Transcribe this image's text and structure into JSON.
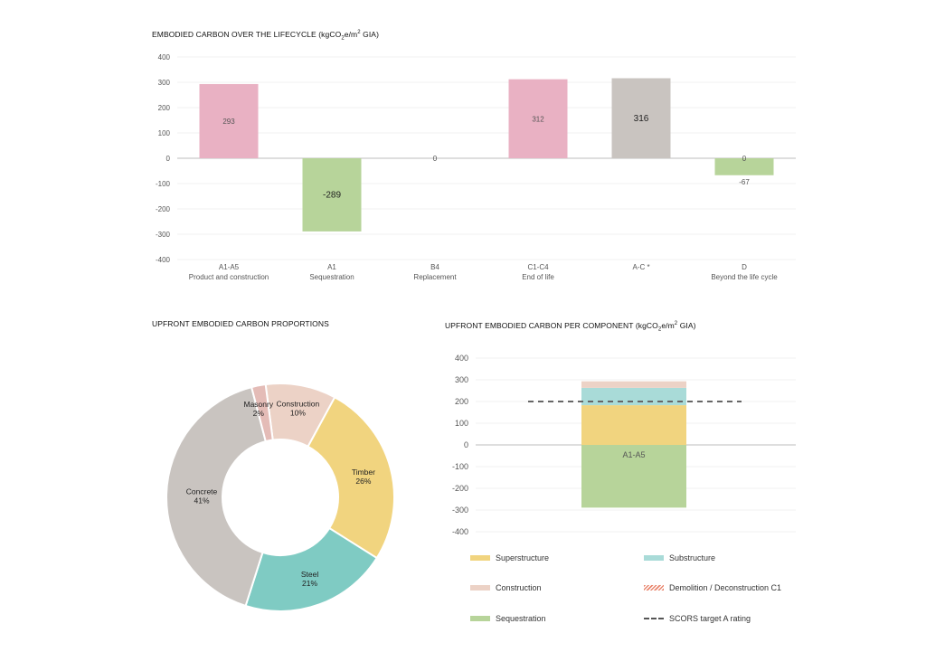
{
  "titles": {
    "chart1_main": "EMBODIED CARBON OVER THE LIFECYCLE (kgCO",
    "chart1_sub": "2",
    "chart1_mid": "e/m",
    "chart1_sup": "2",
    "chart1_tail": " GIA)",
    "chart2": "UPFRONT EMBODIED CARBON PROPORTIONS",
    "chart3_main": "UPFRONT EMBODIED CARBON PER COMPONENT (kgCO",
    "chart3_sub": "2",
    "chart3_mid": "e/m",
    "chart3_sup": "2",
    "chart3_tail": " GIA)"
  },
  "colors": {
    "pink": "#e9b1c3",
    "green": "#b7d49a",
    "grey": "#c9c4c0",
    "yellow": "#f1d47f",
    "teal": "#7fcbc3",
    "peach": "#ecd2c6",
    "masonry": "#e4bcb7",
    "substructure": "#a9dbd8",
    "axis": "#555555",
    "grid": "#e6e6e6"
  },
  "chart_data": [
    {
      "type": "bar",
      "title": "EMBODIED CARBON OVER THE LIFECYCLE (kgCO2e/m2 GIA)",
      "ylim": [
        -400,
        400
      ],
      "yticks": [
        "400",
        "300",
        "200",
        "100",
        "0",
        "-100",
        "-200",
        "-300",
        "-400"
      ],
      "ytick_values": [
        400,
        300,
        200,
        100,
        0,
        -100,
        -200,
        -300,
        -400
      ],
      "categories": [
        {
          "code": "A1-A5",
          "label": "Product and construction"
        },
        {
          "code": "A1",
          "label": "Sequestration"
        },
        {
          "code": "B4",
          "label": "Replacement"
        },
        {
          "code": "C1-C4",
          "label": "End of life"
        },
        {
          "code": "A-C *",
          "label": ""
        },
        {
          "code": "D",
          "label": "Beyond the life cycle"
        }
      ],
      "values": [
        293,
        -289,
        0,
        312,
        316,
        -67
      ],
      "data_labels": [
        "293",
        "-289",
        "0",
        "312",
        "316",
        "-67"
      ],
      "extra_label": {
        "category_index": 5,
        "text": "0"
      },
      "bar_colors": [
        "pink",
        "green",
        "pink",
        "pink",
        "grey",
        "green"
      ]
    },
    {
      "type": "pie",
      "title": "UPFRONT EMBODIED CARBON PROPORTIONS",
      "donut": true,
      "slices": [
        {
          "name": "Construction",
          "value": 10,
          "label": "10%",
          "color": "peach"
        },
        {
          "name": "Timber",
          "value": 26,
          "label": "26%",
          "color": "yellow"
        },
        {
          "name": "Steel",
          "value": 21,
          "label": "21%",
          "color": "teal"
        },
        {
          "name": "Concrete",
          "value": 41,
          "label": "41%",
          "color": "grey"
        },
        {
          "name": "Masonry",
          "value": 2,
          "label": "2%",
          "color": "masonry"
        }
      ]
    },
    {
      "type": "bar",
      "stacked": true,
      "title": "UPFRONT EMBODIED CARBON PER COMPONENT (kgCO2e/m2 GIA)",
      "ylim": [
        -400,
        400
      ],
      "yticks": [
        "400",
        "300",
        "200",
        "100",
        "0",
        "-100",
        "-200",
        "-300",
        "-400"
      ],
      "ytick_values": [
        400,
        300,
        200,
        100,
        0,
        -100,
        -200,
        -300,
        -400
      ],
      "categories": [
        "A1-A5"
      ],
      "series": [
        {
          "name": "Superstructure",
          "values": [
            183
          ],
          "color": "yellow"
        },
        {
          "name": "Substructure",
          "values": [
            80
          ],
          "color": "substructure"
        },
        {
          "name": "Construction",
          "values": [
            30
          ],
          "color": "peach"
        },
        {
          "name": "Demolition / Deconstruction C1",
          "values": [
            0
          ],
          "color": "hatched"
        },
        {
          "name": "Sequestration",
          "values": [
            -289
          ],
          "color": "green"
        }
      ],
      "target_line": {
        "name": "SCORS target A rating",
        "value": 200
      }
    }
  ],
  "legend": [
    {
      "label": "Superstructure",
      "style": "yellow"
    },
    {
      "label": "Substructure",
      "style": "substructure"
    },
    {
      "label": "Construction",
      "style": "peach"
    },
    {
      "label": "Demolition / Deconstruction C1",
      "style": "hatched"
    },
    {
      "label": "Sequestration",
      "style": "green"
    },
    {
      "label": "SCORS target A rating",
      "style": "dashed"
    }
  ]
}
